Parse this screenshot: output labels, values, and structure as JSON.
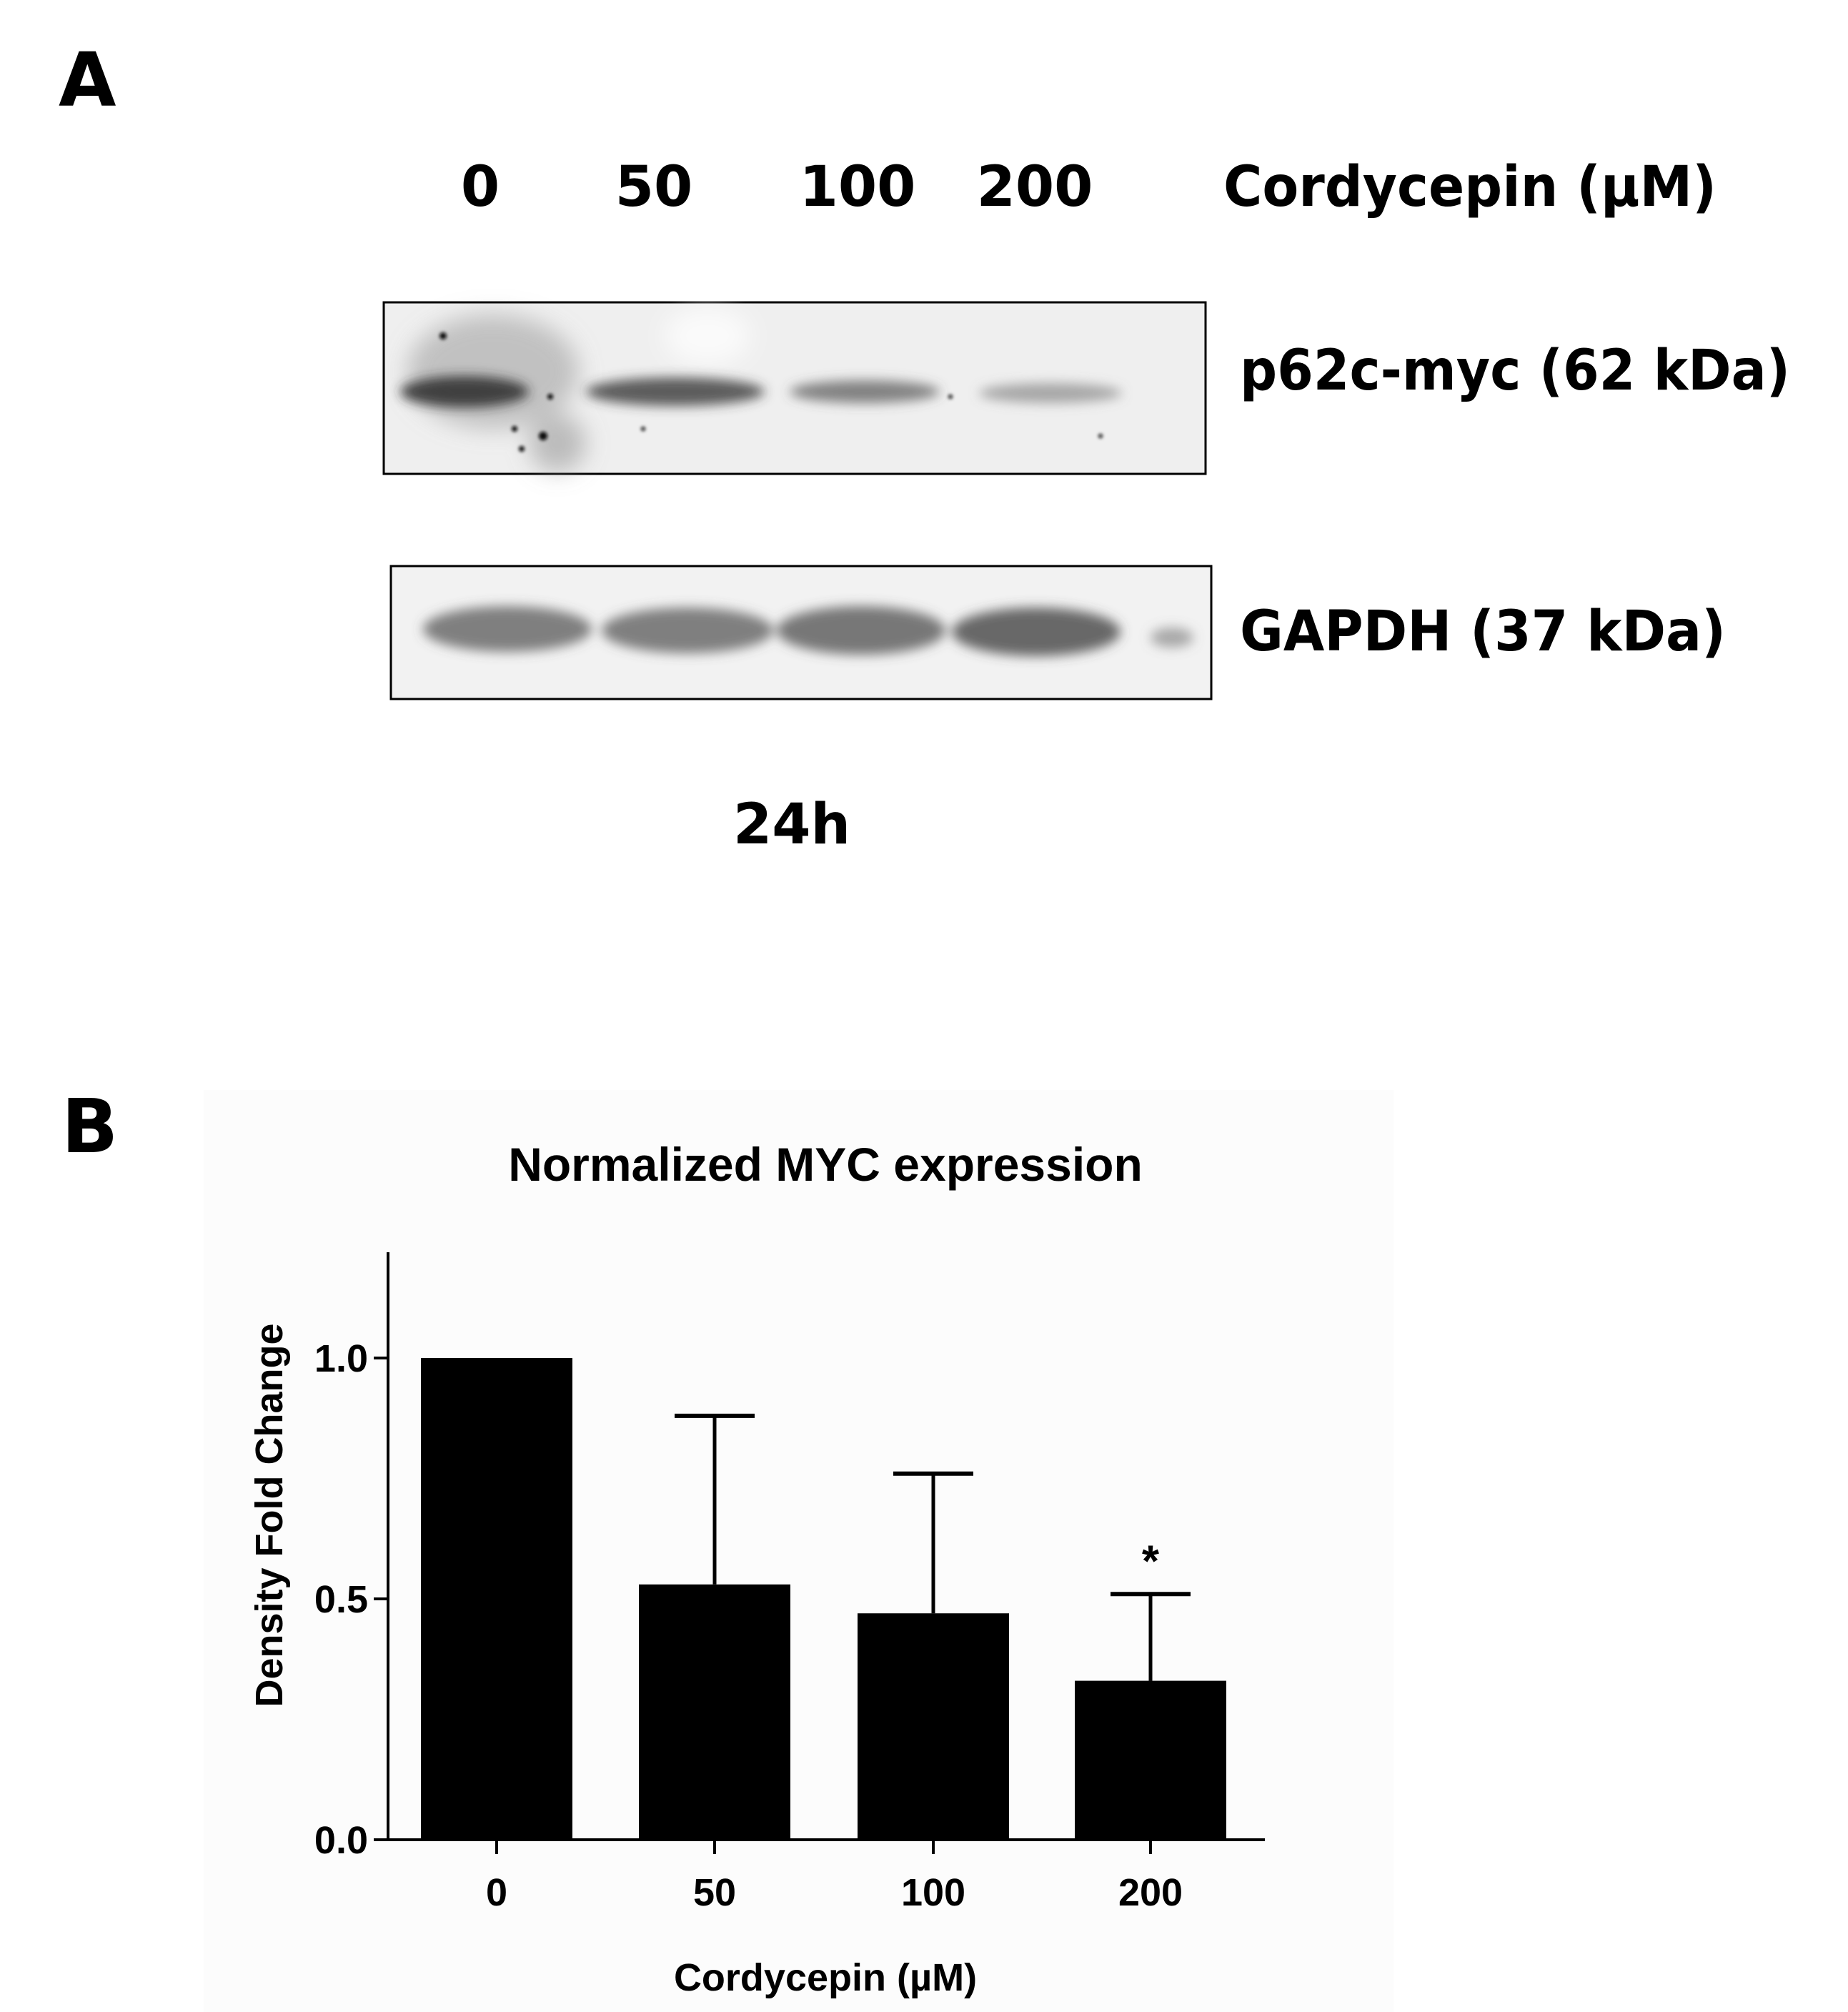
{
  "panel_a": {
    "letter": "A",
    "concentration_labels": [
      "0",
      "50",
      "100",
      "200"
    ],
    "treatment_label": "Cordycepin (µM)",
    "blots": [
      {
        "label": "p62c-myc (62 kDa)"
      },
      {
        "label": "GAPDH (37 kDa)"
      }
    ],
    "time_label": "24h"
  },
  "panel_b": {
    "letter": "B"
  },
  "chart_data": {
    "type": "bar",
    "title": "Normalized MYC expression",
    "xlabel": "Cordycepin (µM)",
    "ylabel": "Density Fold Change",
    "categories": [
      "0",
      "50",
      "100",
      "200"
    ],
    "values": [
      1.0,
      0.53,
      0.47,
      0.33
    ],
    "error_upper": [
      null,
      0.88,
      0.76,
      0.51
    ],
    "annotations": [
      {
        "category": "200",
        "text": "*"
      }
    ],
    "ylim": [
      0,
      1.2
    ],
    "yticks": [
      "0.0",
      "0.5",
      "1.0"
    ],
    "bar_color": "#000000",
    "grid": false,
    "legend": "none"
  }
}
